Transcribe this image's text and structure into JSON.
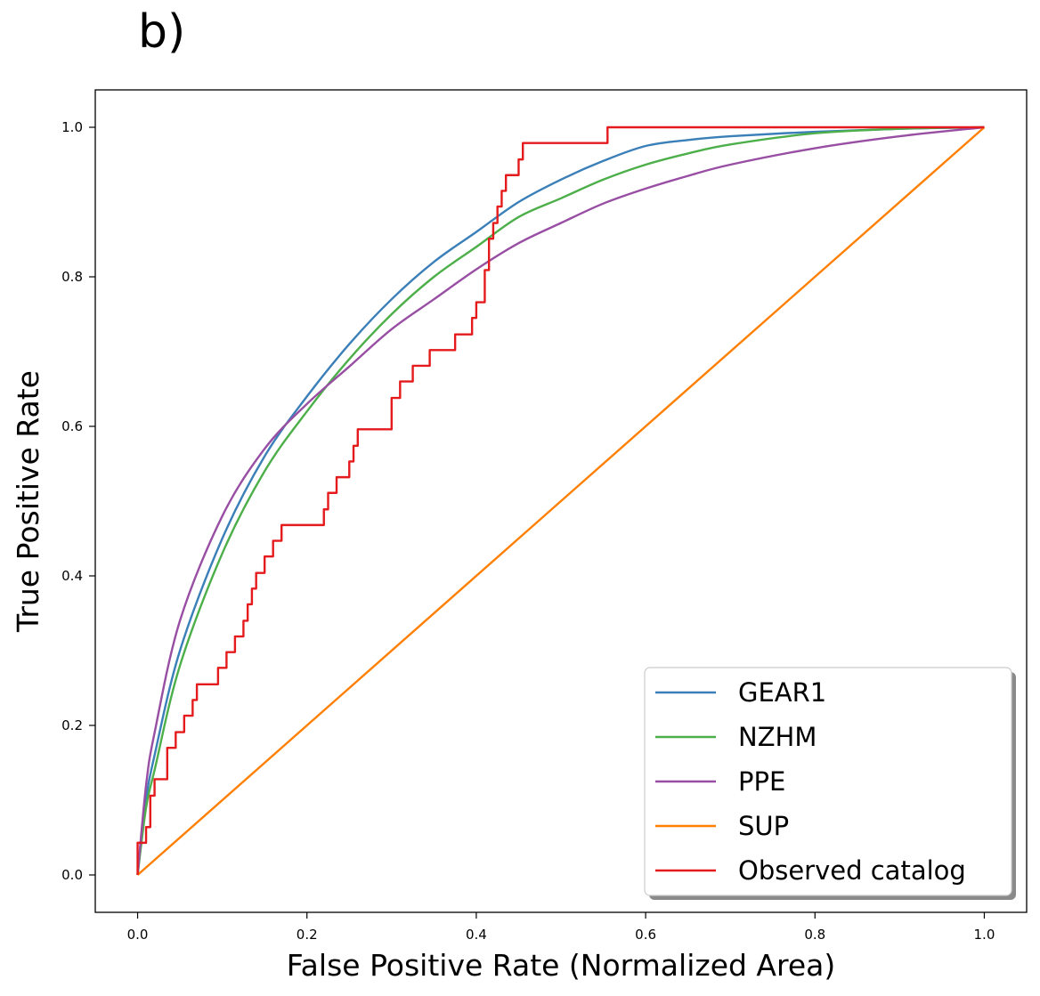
{
  "panel_label": "b)",
  "chart_data": {
    "type": "line",
    "title": "",
    "xlabel": "False Positive Rate (Normalized Area)",
    "ylabel": "True Positive Rate",
    "xlim": [
      -0.05,
      1.05
    ],
    "ylim": [
      -0.05,
      1.05
    ],
    "xticks": [
      0.0,
      0.2,
      0.4,
      0.6,
      0.8,
      1.0
    ],
    "yticks": [
      0.0,
      0.2,
      0.4,
      0.6,
      0.8,
      1.0
    ],
    "xtick_labels": [
      "0.0",
      "0.2",
      "0.4",
      "0.6",
      "0.8",
      "1.0"
    ],
    "ytick_labels": [
      "0.0",
      "0.2",
      "0.4",
      "0.6",
      "0.8",
      "1.0"
    ],
    "grid": false,
    "legend_position": "lower-right",
    "series": [
      {
        "name": "GEAR1",
        "color": "#3a7fb8",
        "style": "curve",
        "x": [
          0.0,
          0.01,
          0.02,
          0.05,
          0.1,
          0.15,
          0.2,
          0.25,
          0.3,
          0.35,
          0.4,
          0.45,
          0.5,
          0.55,
          0.6,
          0.65,
          0.7,
          0.8,
          0.9,
          1.0
        ],
        "y": [
          0.0,
          0.1,
          0.16,
          0.3,
          0.45,
          0.56,
          0.64,
          0.71,
          0.77,
          0.82,
          0.86,
          0.9,
          0.93,
          0.955,
          0.975,
          0.983,
          0.988,
          0.994,
          0.998,
          1.0
        ]
      },
      {
        "name": "NZHM",
        "color": "#4daf4a",
        "style": "curve",
        "x": [
          0.0,
          0.01,
          0.02,
          0.05,
          0.1,
          0.15,
          0.2,
          0.25,
          0.3,
          0.35,
          0.4,
          0.45,
          0.5,
          0.55,
          0.6,
          0.65,
          0.7,
          0.8,
          0.9,
          1.0
        ],
        "y": [
          0.0,
          0.09,
          0.14,
          0.28,
          0.43,
          0.54,
          0.62,
          0.69,
          0.75,
          0.8,
          0.84,
          0.88,
          0.905,
          0.93,
          0.95,
          0.965,
          0.977,
          0.992,
          0.998,
          1.0
        ]
      },
      {
        "name": "PPE",
        "color": "#984ea3",
        "style": "curve",
        "x": [
          0.0,
          0.01,
          0.02,
          0.05,
          0.1,
          0.15,
          0.2,
          0.25,
          0.3,
          0.35,
          0.4,
          0.45,
          0.5,
          0.55,
          0.6,
          0.65,
          0.7,
          0.8,
          0.9,
          1.0
        ],
        "y": [
          0.0,
          0.12,
          0.19,
          0.34,
          0.48,
          0.57,
          0.63,
          0.68,
          0.73,
          0.77,
          0.81,
          0.845,
          0.872,
          0.898,
          0.918,
          0.935,
          0.95,
          0.972,
          0.988,
          1.0
        ]
      },
      {
        "name": "SUP",
        "color": "#ff7f00",
        "style": "curve",
        "x": [
          0.0,
          1.0
        ],
        "y": [
          0.0,
          1.0
        ]
      },
      {
        "name": "Observed catalog",
        "color": "#e41a1c",
        "style": "step",
        "x": [
          0.0,
          0.0,
          0.005,
          0.01,
          0.015,
          0.02,
          0.035,
          0.045,
          0.055,
          0.065,
          0.07,
          0.095,
          0.105,
          0.115,
          0.125,
          0.13,
          0.135,
          0.14,
          0.15,
          0.16,
          0.17,
          0.22,
          0.225,
          0.235,
          0.25,
          0.255,
          0.26,
          0.3,
          0.3,
          0.31,
          0.325,
          0.345,
          0.375,
          0.395,
          0.4,
          0.41,
          0.415,
          0.42,
          0.425,
          0.43,
          0.435,
          0.45,
          0.455,
          0.46,
          0.555,
          0.6,
          0.8,
          1.0
        ],
        "y": [
          0.0,
          0.043,
          0.043,
          0.064,
          0.106,
          0.128,
          0.17,
          0.191,
          0.213,
          0.234,
          0.255,
          0.277,
          0.298,
          0.319,
          0.34,
          0.362,
          0.383,
          0.404,
          0.426,
          0.447,
          0.468,
          0.489,
          0.511,
          0.532,
          0.553,
          0.574,
          0.596,
          0.617,
          0.638,
          0.66,
          0.681,
          0.702,
          0.723,
          0.745,
          0.766,
          0.809,
          0.851,
          0.872,
          0.894,
          0.915,
          0.936,
          0.957,
          0.979,
          0.979,
          1.0,
          1.0,
          1.0,
          1.0
        ]
      }
    ]
  }
}
